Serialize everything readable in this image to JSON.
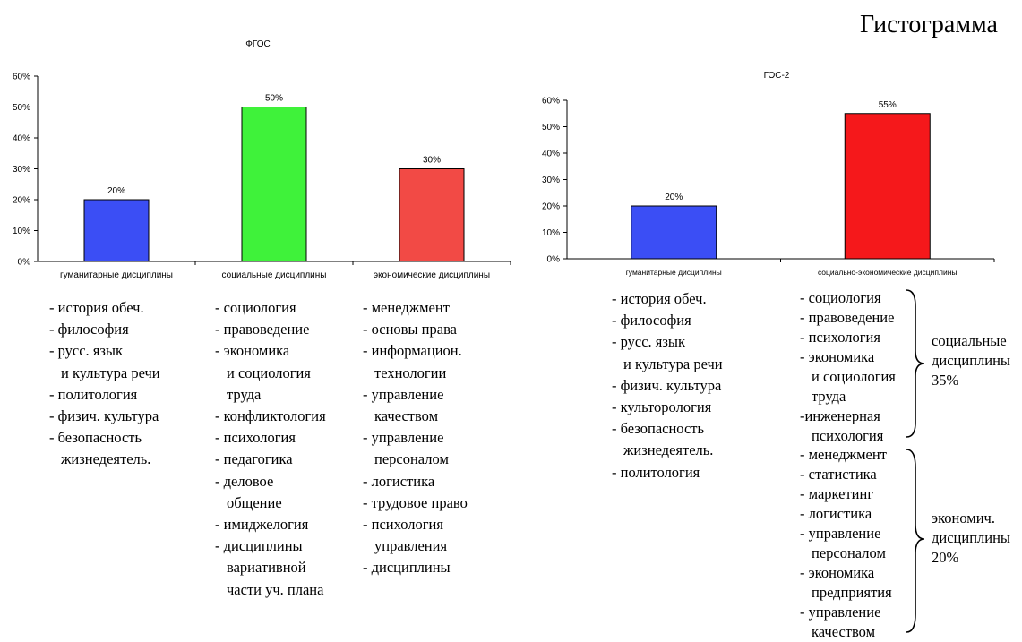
{
  "page_title": "Гистограмма",
  "chart_data": [
    {
      "type": "bar",
      "title": "ФГОС",
      "categories": [
        "гуманитарные дисциплины",
        "социальные дисциплины",
        "экономические дисциплины"
      ],
      "values": [
        20,
        50,
        30
      ],
      "data_labels": [
        "20%",
        "50%",
        "30%"
      ],
      "bar_colors": [
        "#3b4ef5",
        "#3ff23a",
        "#f24a45"
      ],
      "ylim": [
        0,
        60
      ],
      "yticks": [
        "0%",
        "10%",
        "20%",
        "30%",
        "40%",
        "50%",
        "60%"
      ],
      "xlabel": "",
      "ylabel": "",
      "grid": false,
      "legend": "none"
    },
    {
      "type": "bar",
      "title": "ГОС-2",
      "categories": [
        "гуманитарные дисциплины",
        "социально-экономические дисциплины"
      ],
      "values": [
        20,
        55
      ],
      "data_labels": [
        "20%",
        "55%"
      ],
      "bar_colors": [
        "#3b4ef5",
        "#f5181b"
      ],
      "ylim": [
        0,
        60
      ],
      "yticks": [
        "0%",
        "10%",
        "20%",
        "30%",
        "40%",
        "50%",
        "60%"
      ],
      "xlabel": "",
      "ylabel": "",
      "grid": false,
      "legend": "none"
    }
  ],
  "fgos_lists": {
    "humanities": [
      [
        "- история обеч."
      ],
      [
        "- философия"
      ],
      [
        "- русс. язык",
        "и культура речи"
      ],
      [
        "- политология"
      ],
      [
        "- физич. культура"
      ],
      [
        "- безопасность",
        "жизнедеятель."
      ]
    ],
    "social": [
      [
        "- социология"
      ],
      [
        "- правоведение"
      ],
      [
        "- экономика",
        "и социология",
        "труда"
      ],
      [
        "- конфликтология"
      ],
      [
        "- психология"
      ],
      [
        "- педагогика"
      ],
      [
        "- деловое",
        "общение"
      ],
      [
        "- имиджелогия"
      ],
      [
        "- дисциплины",
        "вариативной",
        "части уч. плана"
      ]
    ],
    "economic": [
      [
        "- менеджмент"
      ],
      [
        "- основы права"
      ],
      [
        "- информацион.",
        "технологии"
      ],
      [
        "- управление",
        "качеством"
      ],
      [
        "- управление",
        "персоналом"
      ],
      [
        "- логистика"
      ],
      [
        "- трудовое право"
      ],
      [
        "- психология",
        "управления"
      ],
      [
        "- дисциплины"
      ]
    ]
  },
  "gos2_lists": {
    "humanities": [
      [
        "- история обеч."
      ],
      [
        "- философия"
      ],
      [
        "- русс. язык",
        "и культура речи"
      ],
      [
        "- физич. культура"
      ],
      [
        "- культорология"
      ],
      [
        "- безопасность",
        "жизнедеятель."
      ],
      [
        "- политология"
      ]
    ],
    "social": [
      [
        "- социология"
      ],
      [
        "- правоведение"
      ],
      [
        "- психология"
      ],
      [
        "- экономика",
        "и социология",
        "труда"
      ],
      [
        "-инженерная",
        "психология"
      ]
    ],
    "economic": [
      [
        "- менеджмент"
      ],
      [
        "- статистика"
      ],
      [
        "- маркетинг"
      ],
      [
        "- логистика"
      ],
      [
        "- управление",
        "персоналом"
      ],
      [
        "- экономика",
        "предприятия"
      ],
      [
        "- управление",
        "качеством"
      ]
    ],
    "social_label": [
      "социальные",
      "дисциплины",
      "35%"
    ],
    "economic_label": [
      "экономич.",
      "дисциплины",
      "20%"
    ]
  }
}
